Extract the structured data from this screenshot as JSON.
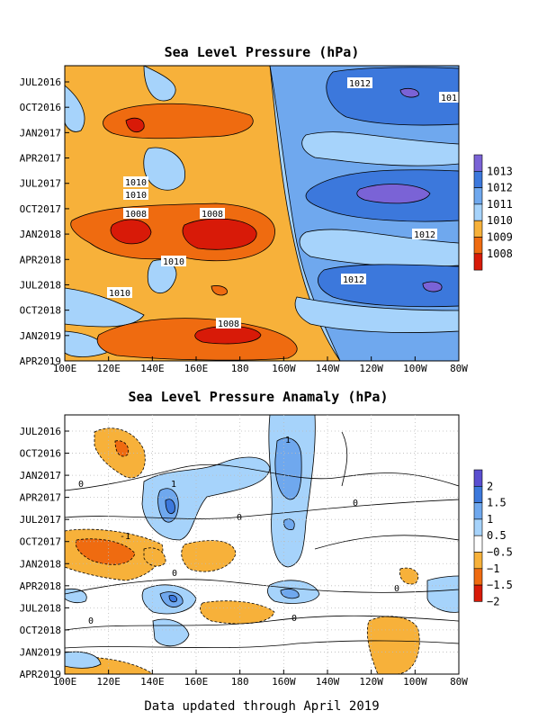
{
  "chart_data": [
    {
      "type": "contour",
      "title": "Sea Level Pressure (hPa)",
      "x_ticks": [
        "100E",
        "120E",
        "140E",
        "160E",
        "180",
        "160W",
        "140W",
        "120W",
        "100W",
        "80W"
      ],
      "y_ticks": [
        "JUL2016",
        "OCT2016",
        "JAN2017",
        "APR2017",
        "JUL2017",
        "OCT2017",
        "JAN2018",
        "APR2018",
        "JUL2018",
        "OCT2018",
        "JAN2019",
        "APR2019"
      ],
      "colorbar": {
        "labels": [
          "1013",
          "1012",
          "1011",
          "1010",
          "1009",
          "1008"
        ],
        "colors": [
          "#7a63d6",
          "#3c78dc",
          "#6fa8ee",
          "#a6d3fb",
          "#f7b13a",
          "#ef6b10",
          "#d81a08"
        ]
      },
      "contour_labels": [
        "1012",
        "101",
        "1010",
        "1010",
        "1008",
        "1008",
        "1012",
        "1010",
        "1012",
        "1010",
        "1008"
      ]
    },
    {
      "type": "contour",
      "title": "Sea Level Pressure Anamaly (hPa)",
      "x_ticks": [
        "100E",
        "120E",
        "140E",
        "160E",
        "180",
        "160W",
        "140W",
        "120W",
        "100W",
        "80W"
      ],
      "y_ticks": [
        "JUL2016",
        "OCT2016",
        "JAN2017",
        "APR2017",
        "JUL2017",
        "OCT2017",
        "JAN2018",
        "APR2018",
        "JUL2018",
        "OCT2018",
        "JAN2019",
        "APR2019"
      ],
      "colorbar": {
        "labels": [
          "2",
          "1.5",
          "1",
          "0.5",
          "−0.5",
          "−1",
          "−1.5",
          "−2"
        ],
        "colors": [
          "#5a4ed0",
          "#3c78dc",
          "#6fa8ee",
          "#a6d3fb",
          "#ffffff",
          "#f7b13a",
          "#ef6b10",
          "#d81a08"
        ]
      },
      "contour_labels": [
        "1",
        "1",
        "0",
        "0",
        "-1",
        "0",
        "0",
        "0",
        "0",
        "0"
      ]
    }
  ],
  "footer": "Data updated through April 2019"
}
